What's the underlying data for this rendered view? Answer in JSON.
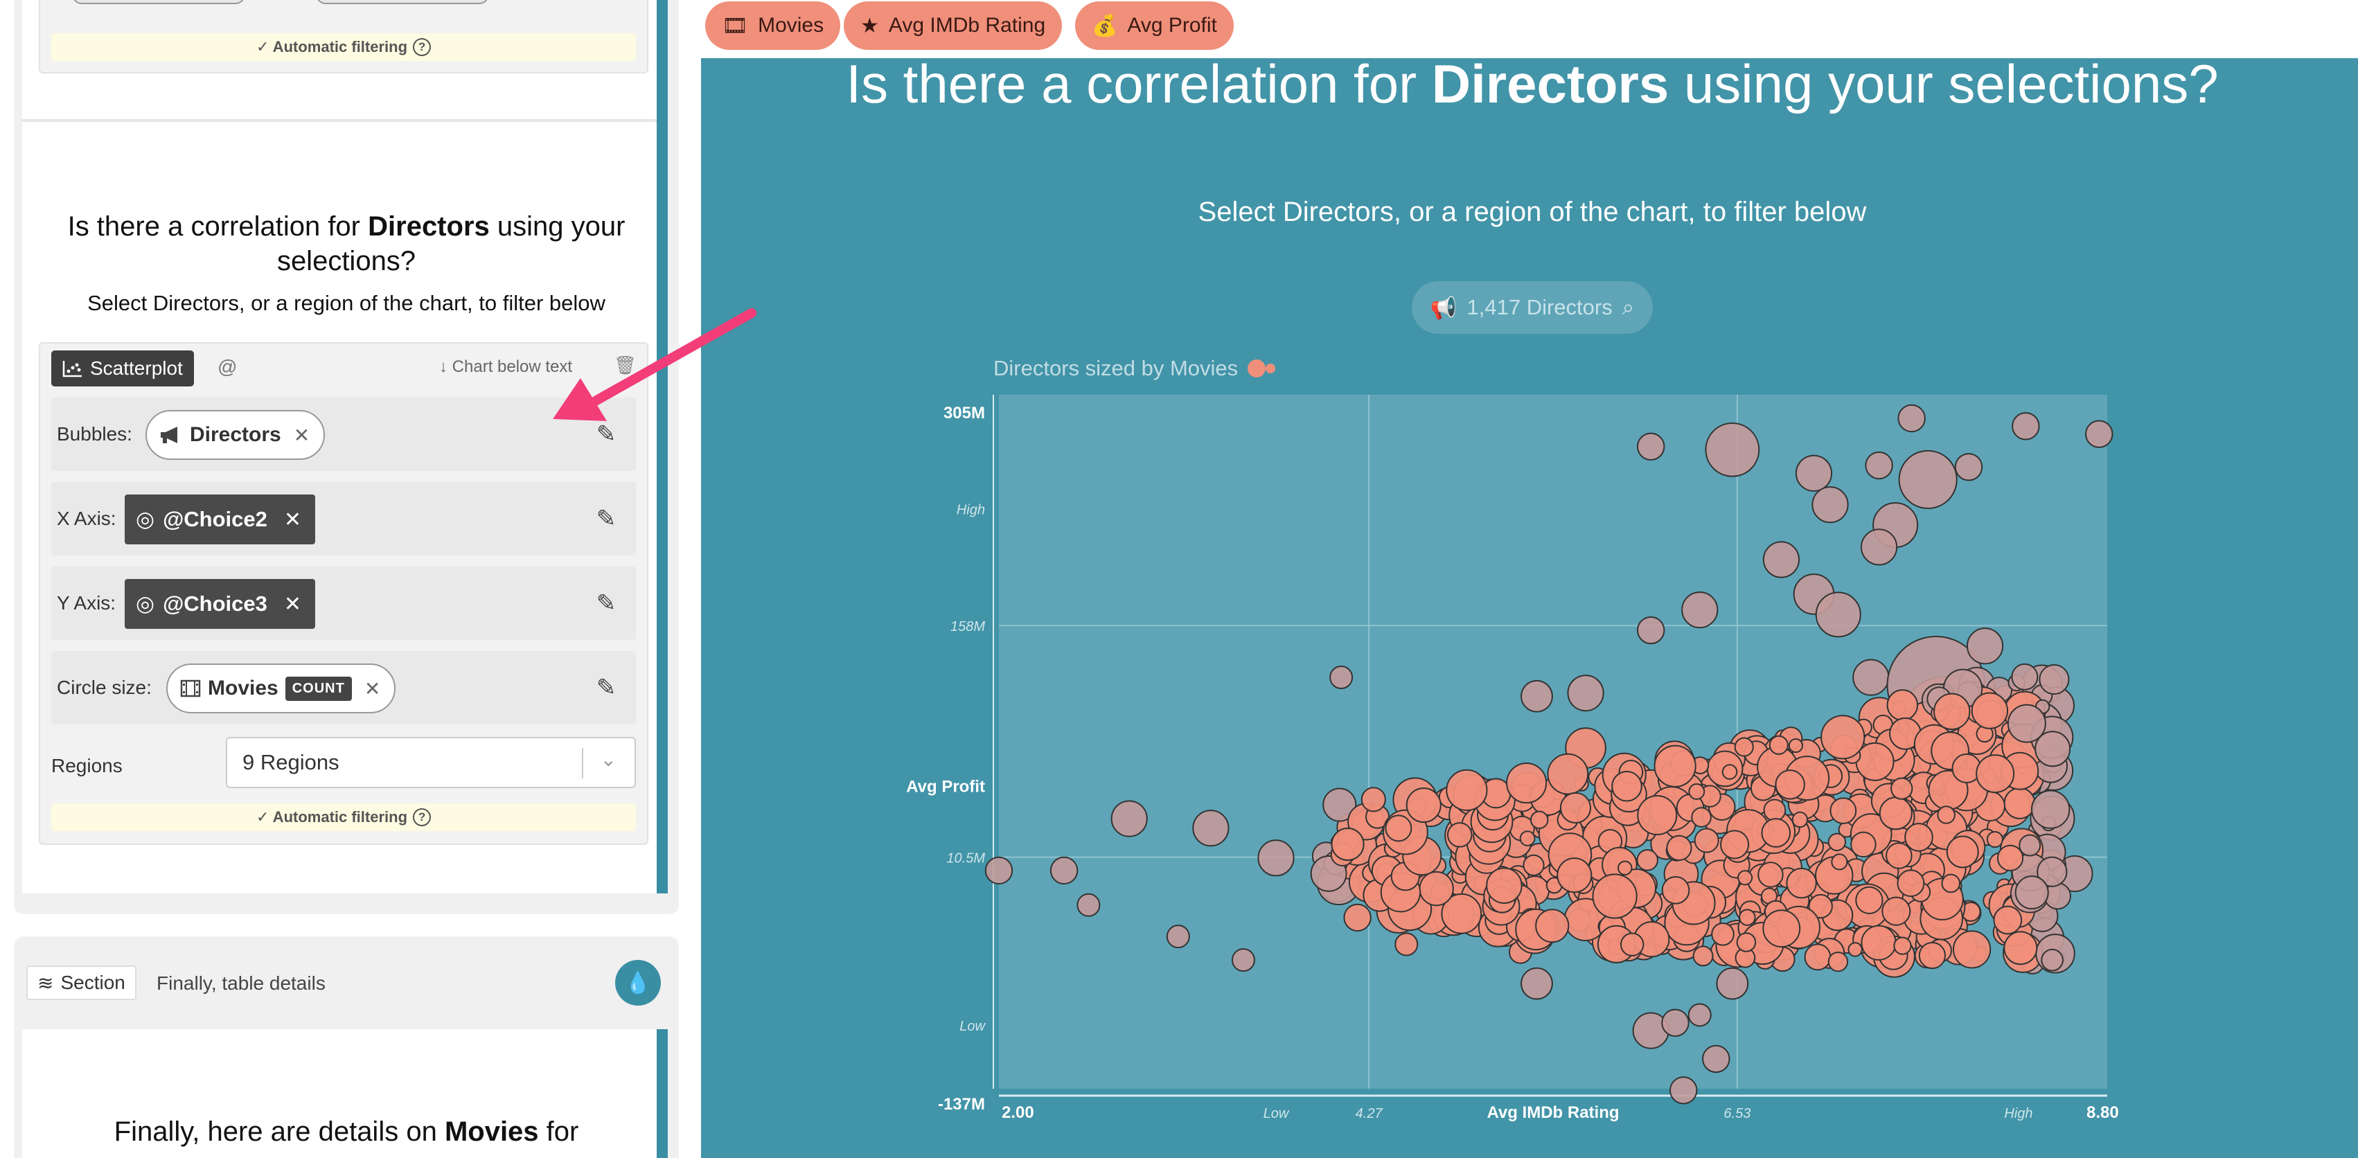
{
  "left_panel": {
    "auto_filter_top": "✓ Automatic filtering",
    "question_title_pre": "Is there a correlation for ",
    "question_title_bold": "Directors",
    "question_title_post": " using your selections?",
    "question_sub": "Select Directors, or a region of the chart, to filter below",
    "chart_type_label": "Scatterplot",
    "at_symbol": "@",
    "chart_position_label": "Chart below text",
    "bubbles_label": "Bubbles:",
    "bubbles_value": "Directors",
    "x_axis_label": "X Axis:",
    "x_axis_value": "@Choice2",
    "y_axis_label": "Y Axis:",
    "y_axis_value": "@Choice3",
    "circle_size_label": "Circle size:",
    "circle_size_value": "Movies",
    "circle_size_agg": "COUNT",
    "regions_label": "Regions",
    "regions_value": "9 Regions",
    "auto_filter_bottom": "✓ Automatic filtering",
    "section_chip": "Section",
    "section_text": "Finally, table details",
    "final_title_pre": "Finally, here are details on ",
    "final_title_bold": "Movies",
    "final_title_post": " for"
  },
  "top_tags": [
    "Movies",
    "Avg IMDb Rating",
    "Avg Profit"
  ],
  "right_panel": {
    "title_pre": "Is there a correlation for ",
    "title_bold": "Directors",
    "title_post": " using your selections?",
    "subtitle": "Select Directors, or a region of the chart, to filter below",
    "search_chip": "1,417 Directors",
    "sized_by_label": "Directors sized by Movies"
  },
  "colors": {
    "teal": "#4294a8",
    "bubble": "#f08f7a",
    "bubble_muted": "#c49a9a",
    "arrow": "#f23d78"
  },
  "chart_data": {
    "type": "scatter",
    "title": "Directors sized by Movies",
    "xlabel": "Avg IMDb Rating",
    "ylabel": "Avg Profit",
    "xlim": [
      2.0,
      8.8
    ],
    "ylim": [
      -137,
      305
    ],
    "y_unit": "M",
    "x_tick_labels": [
      "2.00",
      "Low",
      "4.27",
      "Avg IMDb Rating",
      "6.53",
      "High",
      "8.80"
    ],
    "y_tick_labels": [
      "305M",
      "High",
      "158M",
      "Avg Profit",
      "10.5M",
      "Low",
      "-137M"
    ],
    "x_region_breaks": [
      4.27,
      6.53
    ],
    "y_region_breaks": [
      10.5,
      158
    ],
    "series": [
      {
        "points": [
          [
            4.1,
            125,
            5
          ],
          [
            6.0,
            272,
            6
          ],
          [
            6.5,
            270,
            12
          ],
          [
            7.0,
            255,
            8
          ],
          [
            7.4,
            260,
            6
          ],
          [
            7.6,
            290,
            6
          ],
          [
            7.7,
            251,
            13
          ],
          [
            7.95,
            259,
            6
          ],
          [
            8.3,
            285,
            6
          ],
          [
            8.75,
            280,
            6
          ],
          [
            7.1,
            235,
            8
          ],
          [
            6.8,
            200,
            8
          ],
          [
            7.5,
            222,
            10
          ],
          [
            7.0,
            178,
            9
          ],
          [
            7.4,
            208,
            8
          ],
          [
            6.3,
            168,
            8
          ],
          [
            7.15,
            165,
            10
          ],
          [
            7.35,
            125,
            8
          ],
          [
            7.8,
            97,
            20
          ],
          [
            7.75,
            120,
            22
          ],
          [
            6.0,
            155,
            6
          ],
          [
            8.2,
            103,
            12
          ],
          [
            8.0,
            120,
            8
          ],
          [
            8.05,
            145,
            8
          ],
          [
            8.1,
            70,
            12
          ],
          [
            5.6,
            115,
            8
          ],
          [
            5.3,
            113,
            7
          ],
          [
            2.4,
            2,
            6
          ],
          [
            2.8,
            35,
            8
          ],
          [
            3.3,
            29,
            8
          ],
          [
            3.7,
            10,
            8
          ],
          [
            2.55,
            -20,
            5
          ],
          [
            3.1,
            -40,
            5
          ],
          [
            3.5,
            -55,
            5
          ],
          [
            4.2,
            -28,
            6
          ],
          [
            4.5,
            -45,
            5
          ],
          [
            5.2,
            -50,
            5
          ],
          [
            5.95,
            -35,
            6
          ],
          [
            6.2,
            -40,
            5
          ],
          [
            6.45,
            -50,
            6
          ],
          [
            6.5,
            -70,
            7
          ],
          [
            6.95,
            -30,
            6
          ],
          [
            7.3,
            -40,
            6
          ],
          [
            7.7,
            -40,
            6
          ],
          [
            5.3,
            -70,
            7
          ],
          [
            6.0,
            -100,
            8
          ],
          [
            6.15,
            -95,
            6
          ],
          [
            6.3,
            -90,
            5
          ],
          [
            5.4,
            -5,
            8
          ],
          [
            8.6,
            0,
            8
          ],
          [
            8.35,
            -5,
            7
          ],
          [
            2.0,
            2,
            6
          ],
          [
            6.4,
            -118,
            6
          ],
          [
            6.2,
            -138,
            6
          ],
          [
            4.4,
            -10,
            8
          ],
          [
            6.1,
            45,
            8
          ],
          [
            6.6,
            30,
            9
          ],
          [
            6.9,
            55,
            8
          ],
          [
            7.25,
            62,
            8
          ],
          [
            7.45,
            80,
            8
          ],
          [
            5.6,
            80,
            9
          ],
          [
            5.9,
            60,
            8
          ],
          [
            4.65,
            40,
            7
          ],
          [
            5.05,
            25,
            7
          ],
          [
            5.75,
            15,
            7
          ],
          [
            6.65,
            -12,
            7
          ],
          [
            7.05,
            10,
            7
          ],
          [
            7.6,
            20,
            8
          ],
          [
            8.05,
            35,
            8
          ],
          [
            8.45,
            5,
            7
          ]
        ]
      }
    ]
  }
}
